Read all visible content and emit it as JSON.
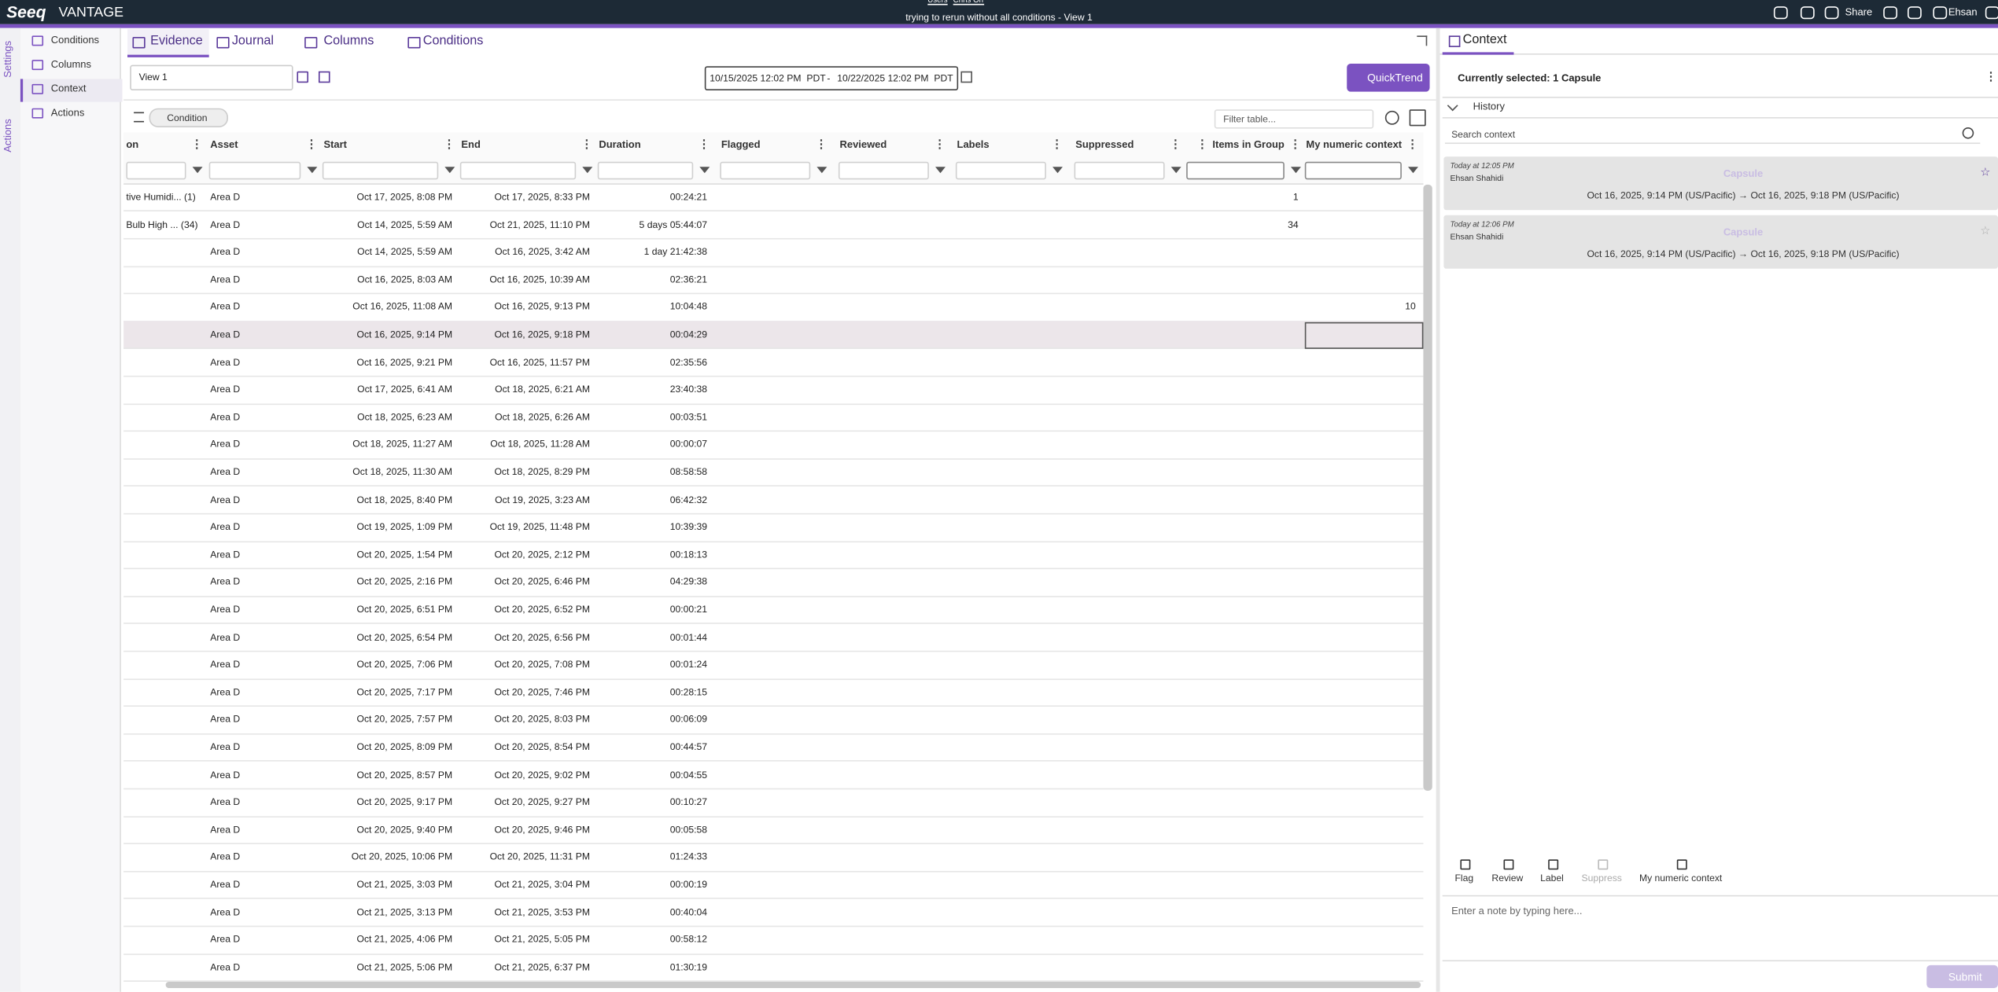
{
  "header": {
    "logo": "Seeq",
    "product": "VANTAGE",
    "breadcrumb": [
      "Users",
      "Chris Orr"
    ],
    "title": "trying to rerun without all conditions - View 1",
    "share": "Share",
    "user": "Ehsan"
  },
  "side_tabs": [
    "Settings",
    "Actions"
  ],
  "side_menu": [
    "Conditions",
    "Columns",
    "Context",
    "Actions"
  ],
  "tabs": [
    "Evidence",
    "Journal",
    "Columns",
    "Conditions"
  ],
  "toolbar": {
    "view": "View 1",
    "start": "10/15/2025 12:02 PM",
    "start_tz": "PDT",
    "separator": "-",
    "end": "10/22/2025 12:02 PM",
    "end_tz": "PDT",
    "quicktrend": "QuickTrend"
  },
  "chips": [
    "Condition"
  ],
  "filter_placeholder": "Filter table...",
  "table": {
    "columns": [
      "on",
      "Asset",
      "Start",
      "End",
      "Duration",
      "Flagged",
      "Reviewed",
      "Labels",
      "Suppressed",
      "Items in Group",
      "My numeric context"
    ],
    "rows": [
      [
        "tive Humidi... (1)",
        "Area D",
        "Oct 17, 2025, 8:08 PM",
        "Oct 17, 2025, 8:33 PM",
        "00:24:21",
        null,
        null,
        null,
        null,
        1,
        null
      ],
      [
        "Bulb High ... (34)",
        "Area D",
        "Oct 14, 2025, 5:59 AM",
        "Oct 21, 2025, 11:10 PM",
        "5 days 05:44:07",
        null,
        null,
        null,
        null,
        34,
        null
      ],
      [
        null,
        "Area D",
        "Oct 14, 2025, 5:59 AM",
        "Oct 16, 2025, 3:42 AM",
        "1 day 21:42:38",
        null,
        null,
        null,
        null,
        null,
        null
      ],
      [
        null,
        "Area D",
        "Oct 16, 2025, 8:03 AM",
        "Oct 16, 2025, 10:39 AM",
        "02:36:21",
        null,
        null,
        null,
        null,
        null,
        null
      ],
      [
        null,
        "Area D",
        "Oct 16, 2025, 11:08 AM",
        "Oct 16, 2025, 9:13 PM",
        "10:04:48",
        null,
        null,
        null,
        null,
        null,
        10
      ],
      [
        null,
        "Area D",
        "Oct 16, 2025, 9:14 PM",
        "Oct 16, 2025, 9:18 PM",
        "00:04:29",
        null,
        null,
        null,
        null,
        null,
        null
      ],
      [
        null,
        "Area D",
        "Oct 16, 2025, 9:21 PM",
        "Oct 16, 2025, 11:57 PM",
        "02:35:56",
        null,
        null,
        null,
        null,
        null,
        null
      ],
      [
        null,
        "Area D",
        "Oct 17, 2025, 6:41 AM",
        "Oct 18, 2025, 6:21 AM",
        "23:40:38",
        null,
        null,
        null,
        null,
        null,
        null
      ],
      [
        null,
        "Area D",
        "Oct 18, 2025, 6:23 AM",
        "Oct 18, 2025, 6:26 AM",
        "00:03:51",
        null,
        null,
        null,
        null,
        null,
        null
      ],
      [
        null,
        "Area D",
        "Oct 18, 2025, 11:27 AM",
        "Oct 18, 2025, 11:28 AM",
        "00:00:07",
        null,
        null,
        null,
        null,
        null,
        null
      ],
      [
        null,
        "Area D",
        "Oct 18, 2025, 11:30 AM",
        "Oct 18, 2025, 8:29 PM",
        "08:58:58",
        null,
        null,
        null,
        null,
        null,
        null
      ],
      [
        null,
        "Area D",
        "Oct 18, 2025, 8:40 PM",
        "Oct 19, 2025, 3:23 AM",
        "06:42:32",
        null,
        null,
        null,
        null,
        null,
        null
      ],
      [
        null,
        "Area D",
        "Oct 19, 2025, 1:09 PM",
        "Oct 19, 2025, 11:48 PM",
        "10:39:39",
        null,
        null,
        null,
        null,
        null,
        null
      ],
      [
        null,
        "Area D",
        "Oct 20, 2025, 1:54 PM",
        "Oct 20, 2025, 2:12 PM",
        "00:18:13",
        null,
        null,
        null,
        null,
        null,
        null
      ],
      [
        null,
        "Area D",
        "Oct 20, 2025, 2:16 PM",
        "Oct 20, 2025, 6:46 PM",
        "04:29:38",
        null,
        null,
        null,
        null,
        null,
        null
      ],
      [
        null,
        "Area D",
        "Oct 20, 2025, 6:51 PM",
        "Oct 20, 2025, 6:52 PM",
        "00:00:21",
        null,
        null,
        null,
        null,
        null,
        null
      ],
      [
        null,
        "Area D",
        "Oct 20, 2025, 6:54 PM",
        "Oct 20, 2025, 6:56 PM",
        "00:01:44",
        null,
        null,
        null,
        null,
        null,
        null
      ],
      [
        null,
        "Area D",
        "Oct 20, 2025, 7:06 PM",
        "Oct 20, 2025, 7:08 PM",
        "00:01:24",
        null,
        null,
        null,
        null,
        null,
        null
      ],
      [
        null,
        "Area D",
        "Oct 20, 2025, 7:17 PM",
        "Oct 20, 2025, 7:46 PM",
        "00:28:15",
        null,
        null,
        null,
        null,
        null,
        null
      ],
      [
        null,
        "Area D",
        "Oct 20, 2025, 7:57 PM",
        "Oct 20, 2025, 8:03 PM",
        "00:06:09",
        null,
        null,
        null,
        null,
        null,
        null
      ],
      [
        null,
        "Area D",
        "Oct 20, 2025, 8:09 PM",
        "Oct 20, 2025, 8:54 PM",
        "00:44:57",
        null,
        null,
        null,
        null,
        null,
        null
      ],
      [
        null,
        "Area D",
        "Oct 20, 2025, 8:57 PM",
        "Oct 20, 2025, 9:02 PM",
        "00:04:55",
        null,
        null,
        null,
        null,
        null,
        null
      ],
      [
        null,
        "Area D",
        "Oct 20, 2025, 9:17 PM",
        "Oct 20, 2025, 9:27 PM",
        "00:10:27",
        null,
        null,
        null,
        null,
        null,
        null
      ],
      [
        null,
        "Area D",
        "Oct 20, 2025, 9:40 PM",
        "Oct 20, 2025, 9:46 PM",
        "00:05:58",
        null,
        null,
        null,
        null,
        null,
        null
      ],
      [
        null,
        "Area D",
        "Oct 20, 2025, 10:06 PM",
        "Oct 20, 2025, 11:31 PM",
        "01:24:33",
        null,
        null,
        null,
        null,
        null,
        null
      ],
      [
        null,
        "Area D",
        "Oct 21, 2025, 3:03 PM",
        "Oct 21, 2025, 3:04 PM",
        "00:00:19",
        null,
        null,
        null,
        null,
        null,
        null
      ],
      [
        null,
        "Area D",
        "Oct 21, 2025, 3:13 PM",
        "Oct 21, 2025, 3:53 PM",
        "00:40:04",
        null,
        null,
        null,
        null,
        null,
        null
      ],
      [
        null,
        "Area D",
        "Oct 21, 2025, 4:06 PM",
        "Oct 21, 2025, 5:05 PM",
        "00:58:12",
        null,
        null,
        null,
        null,
        null,
        null
      ],
      [
        null,
        "Area D",
        "Oct 21, 2025, 5:06 PM",
        "Oct 21, 2025, 6:37 PM",
        "01:30:19",
        null,
        null,
        null,
        null,
        null,
        null
      ]
    ]
  },
  "context": {
    "title": "Context",
    "selected": "Currently selected: 1 Capsule",
    "history": "History",
    "search_placeholder": "Search context",
    "entries": [
      {
        "time": "Today at 12:05 PM",
        "user": "Ehsan Shahidi",
        "type": "Capsule",
        "range": "Oct 16, 2025, 9:14 PM (US/Pacific) → Oct 16, 2025, 9:18 PM (US/Pacific)"
      },
      {
        "time": "Today at 12:06 PM",
        "user": "Ehsan Shahidi",
        "type": "Capsule",
        "range": "Oct 16, 2025, 9:14 PM (US/Pacific) → Oct 16, 2025, 9:18 PM (US/Pacific)"
      }
    ],
    "actions": [
      "Flag",
      "Review",
      "Label",
      "Suppress",
      "My numeric context"
    ],
    "note_placeholder": "Enter a note by typing here...",
    "submit": "Submit"
  }
}
